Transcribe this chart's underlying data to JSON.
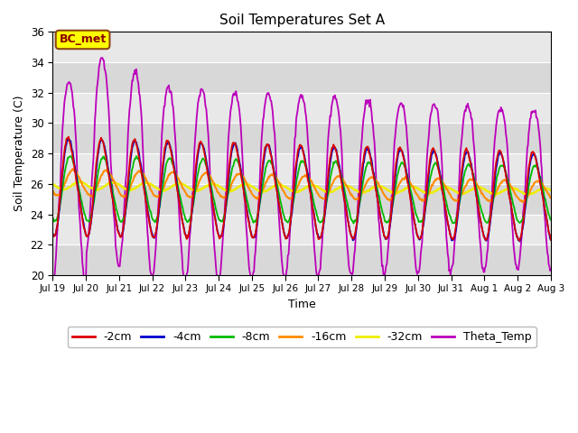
{
  "title": "Soil Temperatures Set A",
  "xlabel": "Time",
  "ylabel": "Soil Temperature (C)",
  "ylim": [
    20,
    36
  ],
  "xlim": [
    0,
    15
  ],
  "fig_facecolor": "#ffffff",
  "plot_facecolor": "#e8e8e8",
  "annotation_text": "BC_met",
  "annotation_fg": "#8B0000",
  "annotation_bg": "#ffff00",
  "annotation_border": "#8B4513",
  "xtick_labels": [
    "Jul 19",
    "Jul 20",
    "Jul 21",
    "Jul 22",
    "Jul 23",
    "Jul 24",
    "Jul 25",
    "Jul 26",
    "Jul 27",
    "Jul 28",
    "Jul 29",
    "Jul 30",
    "Jul 31",
    "Aug 1",
    "Aug 2",
    "Aug 3"
  ],
  "series_colors": [
    "#dd0000",
    "#0000cc",
    "#00bb00",
    "#ff8c00",
    "#eeee00",
    "#bb00bb"
  ],
  "series_names": [
    "-2cm",
    "-4cm",
    "-8cm",
    "-16cm",
    "-32cm",
    "Theta_Temp"
  ],
  "series_linewidths": [
    1.3,
    1.3,
    1.3,
    1.5,
    1.8,
    1.3
  ],
  "yticks": [
    20,
    22,
    24,
    26,
    28,
    30,
    32,
    34,
    36
  ],
  "grid_color": "#ffffff",
  "title_fontsize": 11
}
